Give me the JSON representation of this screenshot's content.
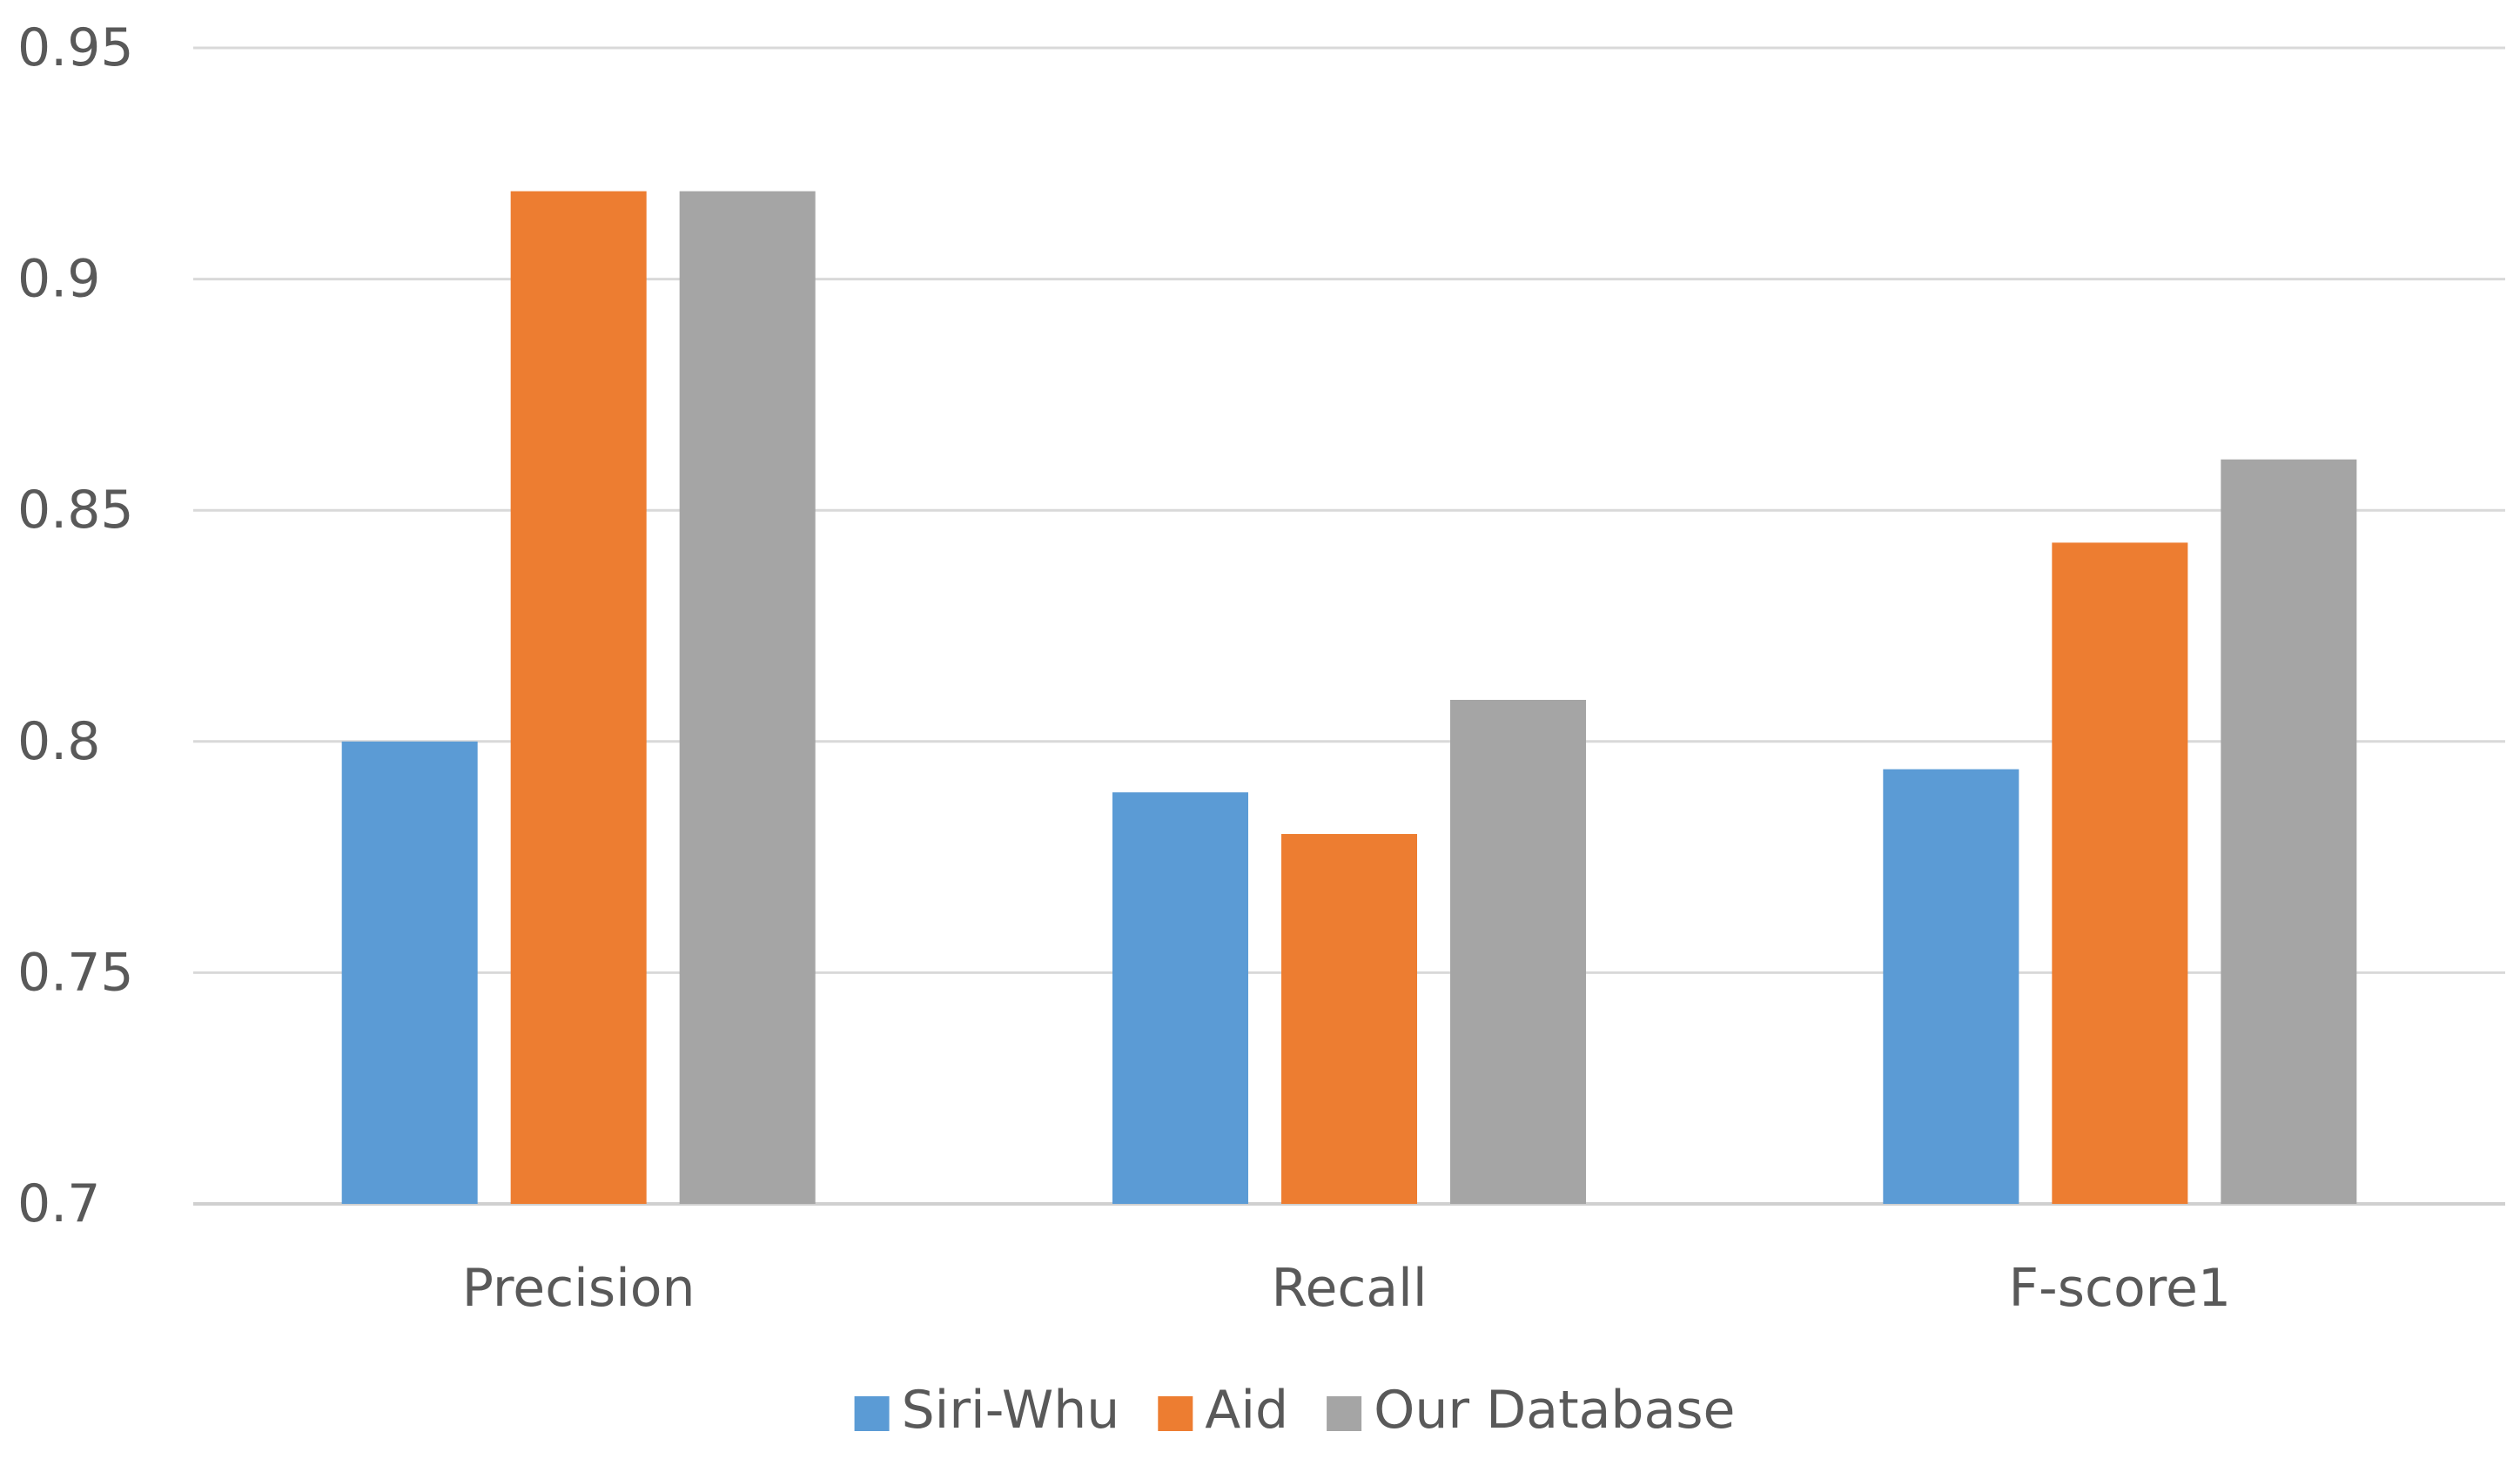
{
  "chart_data": {
    "type": "bar",
    "categories": [
      "Precision",
      "Recall",
      "F-score1"
    ],
    "series": [
      {
        "name": "Siri-Whu",
        "values": [
          0.8,
          0.789,
          0.794
        ],
        "color": "#5b9bd5"
      },
      {
        "name": "Aid",
        "values": [
          0.919,
          0.78,
          0.843
        ],
        "color": "#ed7d31"
      },
      {
        "name": "Our Database",
        "values": [
          0.919,
          0.809,
          0.861
        ],
        "color": "#a5a5a5"
      }
    ],
    "y_ticks": [
      "0.7",
      "0.75",
      "0.8",
      "0.85",
      "0.9",
      "0.95"
    ],
    "ylim": [
      0.7,
      0.95
    ],
    "grid": true,
    "legend_position": "bottom"
  }
}
